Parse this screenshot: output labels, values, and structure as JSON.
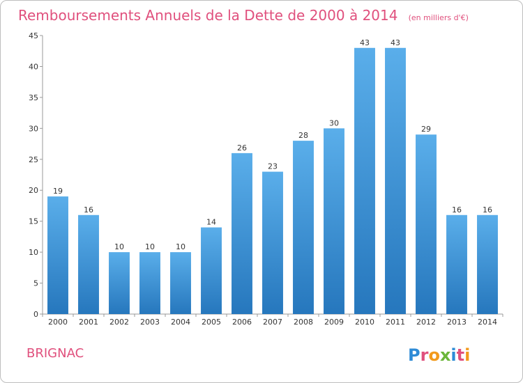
{
  "chart_data": {
    "type": "bar",
    "title": "Remboursements Annuels de la Dette de 2000 à 2014",
    "subtitle": "(en milliers d'€)",
    "categories": [
      "2000",
      "2001",
      "2002",
      "2003",
      "2004",
      "2005",
      "2006",
      "2007",
      "2008",
      "2009",
      "2010",
      "2011",
      "2012",
      "2013",
      "2014"
    ],
    "values": [
      19,
      16,
      10,
      10,
      10,
      14,
      26,
      23,
      28,
      30,
      43,
      43,
      29,
      16,
      16
    ],
    "ylim": [
      0,
      45
    ],
    "yticks": [
      0,
      5,
      10,
      15,
      20,
      25,
      30,
      35,
      40,
      45
    ],
    "grid": false,
    "bar_color_top": "#5aaeea",
    "bar_color_bottom": "#2677bd",
    "title_color": "#e0507d"
  },
  "footer": {
    "commune": "BRIGNAC",
    "logo_text": "Proxiti",
    "logo_colors": [
      "#2e8bd6",
      "#e0507d",
      "#f29a1c",
      "#6bb63a",
      "#2e8bd6",
      "#e0507d",
      "#f29a1c"
    ]
  }
}
